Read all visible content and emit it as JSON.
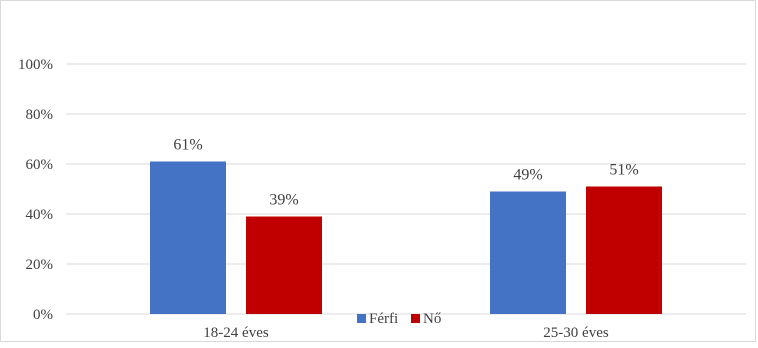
{
  "chart_data": {
    "type": "bar",
    "categories": [
      "18-24 éves",
      "25-30 éves"
    ],
    "series": [
      {
        "name": "Férfi",
        "color": "#4472c4",
        "values": [
          61,
          49
        ],
        "labels": [
          "61%",
          "49%"
        ]
      },
      {
        "name": "Nő",
        "color": "#c00000",
        "values": [
          39,
          51
        ],
        "labels": [
          "39%",
          "51%"
        ]
      }
    ],
    "y_ticks": [
      {
        "value": 0,
        "label": "0%"
      },
      {
        "value": 20,
        "label": "20%"
      },
      {
        "value": 40,
        "label": "40%"
      },
      {
        "value": 60,
        "label": "60%"
      },
      {
        "value": 80,
        "label": "80%"
      },
      {
        "value": 100,
        "label": "100%"
      }
    ],
    "ylim": [
      0,
      100
    ],
    "grid": true,
    "legend": "bottom-center"
  }
}
